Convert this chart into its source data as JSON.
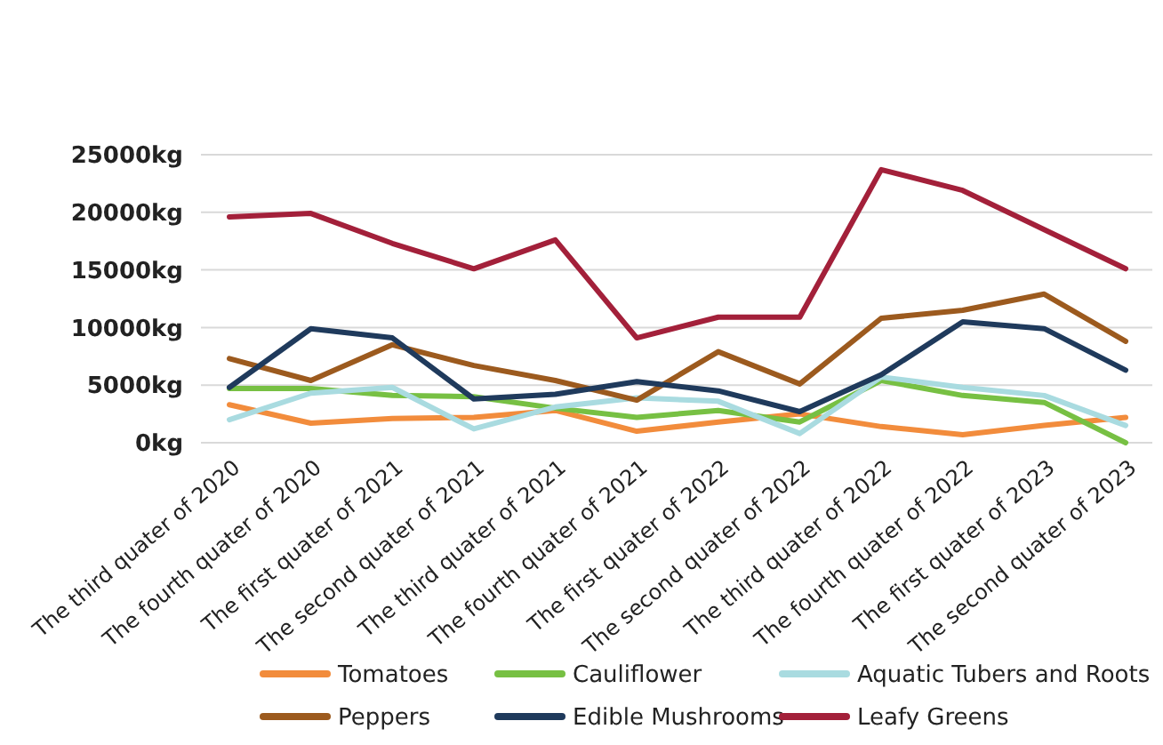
{
  "chart_data": {
    "type": "line",
    "categories": [
      "The third quater of 2020",
      "The fourth quater of 2020",
      "The first quater of 2021",
      "The second quater of 2021",
      "The third quater of 2021",
      "The fourth quater of 2021",
      "The first quater of 2022",
      "The second quater of 2022",
      "The third quater of 2022",
      "The fourth quater of 2022",
      "The first quater of 2023",
      "The second quater of 2023"
    ],
    "series": [
      {
        "name": "Tomatoes",
        "color": "#f28c3c",
        "values": [
          3300,
          1700,
          2100,
          2200,
          2800,
          1000,
          1800,
          2500,
          1400,
          700,
          1500,
          2200
        ]
      },
      {
        "name": "Cauliflower",
        "color": "#77c043",
        "values": [
          4700,
          4700,
          4100,
          4000,
          3000,
          2200,
          2800,
          1800,
          5400,
          4100,
          3500,
          0
        ]
      },
      {
        "name": "Aquatic Tubers and Roots",
        "color": "#a9dbe0",
        "values": [
          2000,
          4300,
          4800,
          1200,
          3100,
          3900,
          3600,
          800,
          5700,
          4800,
          4100,
          1500
        ]
      },
      {
        "name": "Peppers",
        "color": "#9c5a1e",
        "values": [
          7300,
          5400,
          8500,
          6700,
          5400,
          3700,
          7900,
          5100,
          10800,
          11500,
          12900,
          8800
        ]
      },
      {
        "name": "Edible Mushrooms",
        "color": "#1f3a5c",
        "values": [
          4800,
          9900,
          9100,
          3800,
          4200,
          5300,
          4500,
          2700,
          5900,
          10500,
          9900,
          6300
        ]
      },
      {
        "name": "Leafy Greens",
        "color": "#a3203a",
        "values": [
          19600,
          19900,
          17300,
          15100,
          17600,
          9100,
          10900,
          10900,
          23700,
          21900,
          18500,
          15100
        ]
      }
    ],
    "ylim": [
      0,
      25000
    ],
    "yticks": [
      {
        "value": 0,
        "label": "0kg"
      },
      {
        "value": 5000,
        "label": "5000kg"
      },
      {
        "value": 10000,
        "label": "10000kg"
      },
      {
        "value": 15000,
        "label": "15000kg"
      },
      {
        "value": 20000,
        "label": "20000kg"
      },
      {
        "value": 25000,
        "label": "25000kg"
      }
    ],
    "grid": "y",
    "legend": "bottom",
    "marker": "none",
    "line_style": "solid"
  }
}
